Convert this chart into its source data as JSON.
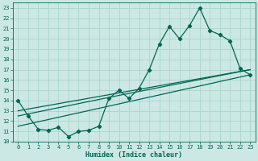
{
  "title": "",
  "xlabel": "Humidex (Indice chaleur)",
  "bg_color": "#cce8e4",
  "grid_color": "#aad4cc",
  "line_color": "#006655",
  "xlim": [
    -0.5,
    23.5
  ],
  "ylim": [
    10,
    23.5
  ],
  "xticks": [
    0,
    1,
    2,
    3,
    4,
    5,
    6,
    7,
    8,
    9,
    10,
    11,
    12,
    13,
    14,
    15,
    16,
    17,
    18,
    19,
    20,
    21,
    22,
    23
  ],
  "yticks": [
    10,
    11,
    12,
    13,
    14,
    15,
    16,
    17,
    18,
    19,
    20,
    21,
    22,
    23
  ],
  "line1_x": [
    0,
    1,
    2,
    3,
    4,
    5,
    6,
    7,
    8,
    9,
    10,
    11,
    12,
    13,
    14,
    15,
    16,
    17,
    18,
    19,
    20,
    21,
    22,
    23
  ],
  "line1_y": [
    14,
    12.5,
    11.2,
    11.1,
    11.4,
    10.5,
    11.0,
    11.1,
    11.5,
    14.2,
    15.0,
    14.2,
    15.2,
    17.0,
    19.5,
    21.2,
    20.0,
    21.3,
    23.0,
    20.8,
    20.4,
    19.8,
    17.1,
    16.5
  ],
  "line2_x": [
    0,
    23
  ],
  "line2_y": [
    13.0,
    17.0
  ],
  "line3_x": [
    0,
    10,
    23
  ],
  "line3_y": [
    12.5,
    14.5,
    17.0
  ],
  "line4_x": [
    0,
    23
  ],
  "line4_y": [
    11.5,
    16.5
  ]
}
